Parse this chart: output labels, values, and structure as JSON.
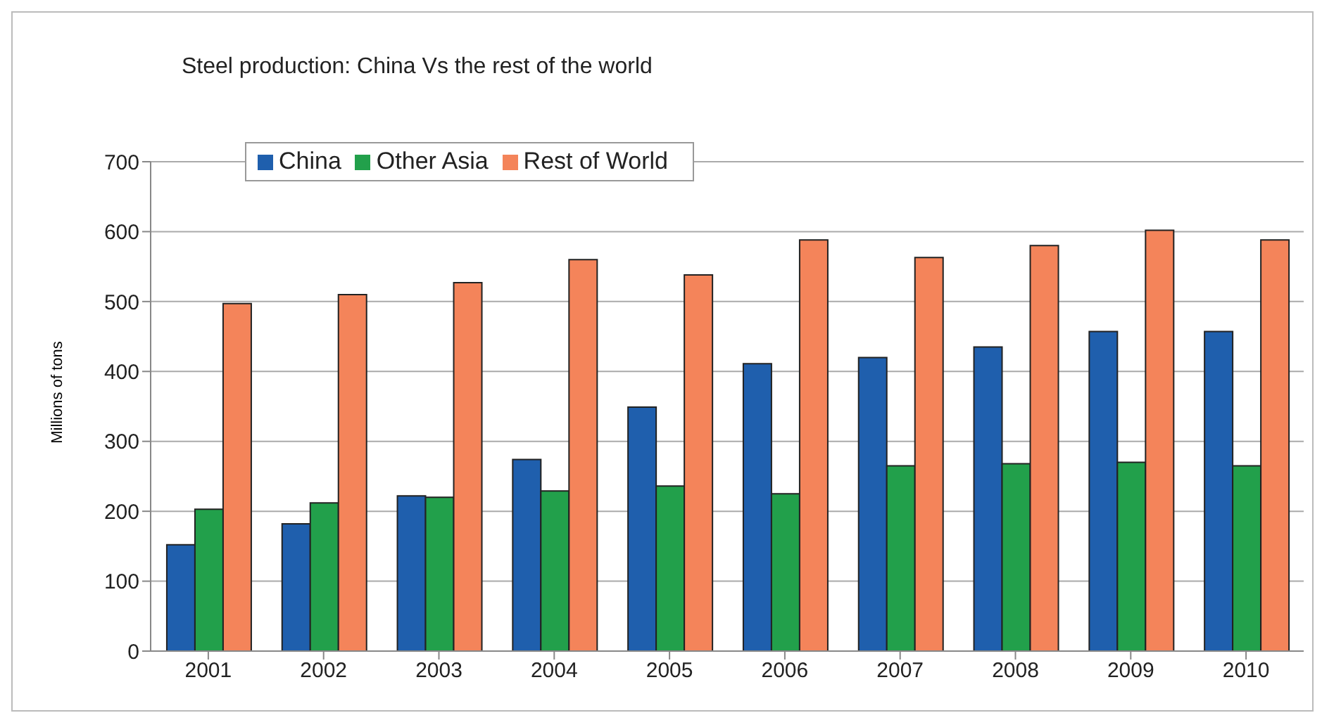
{
  "chart_data": {
    "type": "bar",
    "title": "Steel production: China Vs the rest of the world",
    "ylabel": "Millions of tons",
    "categories": [
      "2001",
      "2002",
      "2003",
      "2004",
      "2005",
      "2006",
      "2007",
      "2008",
      "2009",
      "2010"
    ],
    "series": [
      {
        "name": "China",
        "color": "#1f5fad",
        "values": [
          152,
          182,
          222,
          274,
          349,
          411,
          420,
          435,
          457,
          457
        ]
      },
      {
        "name": "Other Asia",
        "color": "#22a04b",
        "values": [
          203,
          212,
          220,
          229,
          236,
          225,
          265,
          268,
          270,
          265
        ]
      },
      {
        "name": "Rest of World",
        "color": "#f4845a",
        "values": [
          497,
          510,
          527,
          560,
          538,
          588,
          563,
          580,
          602,
          588
        ]
      }
    ],
    "ylim": [
      0,
      700
    ],
    "yticks": [
      0,
      100,
      200,
      300,
      400,
      500,
      600,
      700
    ],
    "grid": "y",
    "legend": "top left"
  }
}
